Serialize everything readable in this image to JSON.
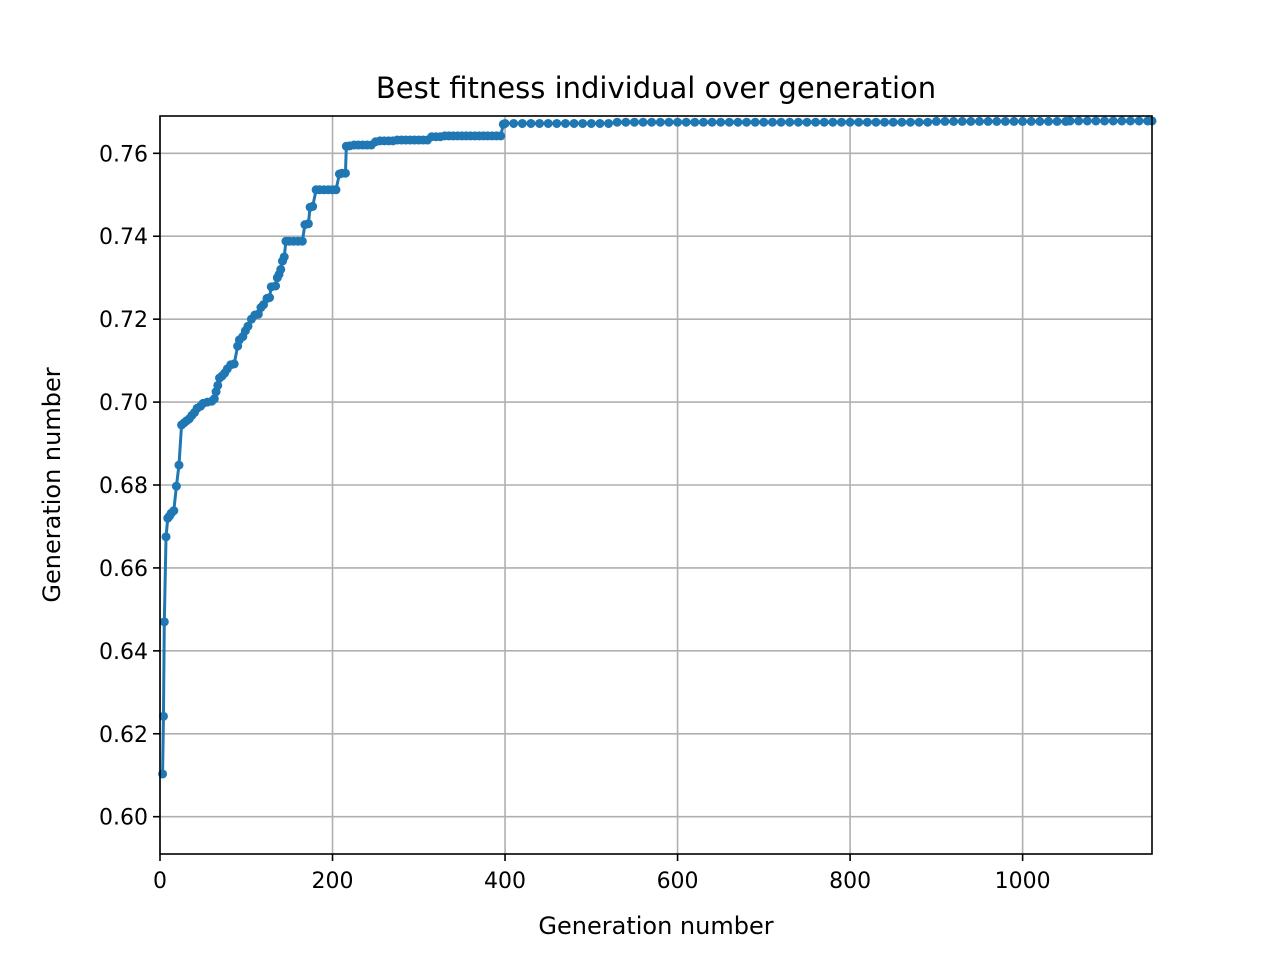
{
  "chart_data": {
    "type": "line",
    "title": "Best fitness individual over generation",
    "xlabel": "Generation number",
    "ylabel": "Generation number",
    "xlim": [
      0,
      1150
    ],
    "ylim": [
      0.591,
      0.769
    ],
    "xticks": [
      0,
      200,
      400,
      600,
      800,
      1000
    ],
    "yticks": [
      0.6,
      0.62,
      0.64,
      0.66,
      0.68,
      0.7,
      0.72,
      0.74,
      0.76
    ],
    "grid": true,
    "legend": "none",
    "colors": {
      "series": "#1f77b4",
      "grid": "#b0b0b0"
    },
    "series": [
      {
        "marker": "point",
        "points": [
          [
            3,
            0.6103
          ],
          [
            4,
            0.6242
          ],
          [
            5,
            0.647
          ],
          [
            7,
            0.6675
          ],
          [
            9,
            0.672
          ],
          [
            11,
            0.6725
          ],
          [
            13,
            0.6732
          ],
          [
            16,
            0.6738
          ],
          [
            19,
            0.6797
          ],
          [
            22,
            0.6848
          ],
          [
            25,
            0.6945
          ],
          [
            28,
            0.695
          ],
          [
            31,
            0.6955
          ],
          [
            34,
            0.696
          ],
          [
            37,
            0.6968
          ],
          [
            40,
            0.6975
          ],
          [
            43,
            0.6985
          ],
          [
            47,
            0.699
          ],
          [
            50,
            0.6997
          ],
          [
            55,
            0.7
          ],
          [
            60,
            0.7002
          ],
          [
            63,
            0.7008
          ],
          [
            65,
            0.7025
          ],
          [
            67,
            0.704
          ],
          [
            69,
            0.7058
          ],
          [
            72,
            0.7063
          ],
          [
            75,
            0.707
          ],
          [
            78,
            0.708
          ],
          [
            82,
            0.709
          ],
          [
            86,
            0.7092
          ],
          [
            90,
            0.7135
          ],
          [
            92,
            0.715
          ],
          [
            96,
            0.7158
          ],
          [
            99,
            0.7172
          ],
          [
            102,
            0.7183
          ],
          [
            106,
            0.72
          ],
          [
            110,
            0.721
          ],
          [
            114,
            0.7212
          ],
          [
            117,
            0.7228
          ],
          [
            120,
            0.7235
          ],
          [
            124,
            0.725
          ],
          [
            127,
            0.7252
          ],
          [
            129,
            0.7278
          ],
          [
            134,
            0.728
          ],
          [
            136,
            0.73
          ],
          [
            138,
            0.7308
          ],
          [
            140,
            0.732
          ],
          [
            142,
            0.734
          ],
          [
            144,
            0.735
          ],
          [
            146,
            0.7388
          ],
          [
            150,
            0.7388
          ],
          [
            155,
            0.7388
          ],
          [
            160,
            0.7388
          ],
          [
            165,
            0.7388
          ],
          [
            168,
            0.7428
          ],
          [
            172,
            0.743
          ],
          [
            174,
            0.747
          ],
          [
            177,
            0.7472
          ],
          [
            181,
            0.7512
          ],
          [
            185,
            0.7512
          ],
          [
            190,
            0.7512
          ],
          [
            195,
            0.7512
          ],
          [
            200,
            0.7512
          ],
          [
            204,
            0.7512
          ],
          [
            208,
            0.755
          ],
          [
            211,
            0.7552
          ],
          [
            215,
            0.7552
          ],
          [
            216,
            0.7617
          ],
          [
            220,
            0.7618
          ],
          [
            225,
            0.762
          ],
          [
            230,
            0.762
          ],
          [
            235,
            0.762
          ],
          [
            240,
            0.762
          ],
          [
            245,
            0.762
          ],
          [
            250,
            0.7628
          ],
          [
            255,
            0.763
          ],
          [
            260,
            0.763
          ],
          [
            265,
            0.763
          ],
          [
            270,
            0.763
          ],
          [
            275,
            0.7632
          ],
          [
            280,
            0.7632
          ],
          [
            285,
            0.7632
          ],
          [
            290,
            0.7632
          ],
          [
            295,
            0.7632
          ],
          [
            300,
            0.7632
          ],
          [
            305,
            0.7632
          ],
          [
            310,
            0.7632
          ],
          [
            315,
            0.764
          ],
          [
            320,
            0.764
          ],
          [
            325,
            0.764
          ],
          [
            330,
            0.7642
          ],
          [
            335,
            0.7642
          ],
          [
            340,
            0.7642
          ],
          [
            345,
            0.7642
          ],
          [
            350,
            0.7642
          ],
          [
            355,
            0.7642
          ],
          [
            360,
            0.7642
          ],
          [
            365,
            0.7642
          ],
          [
            370,
            0.7642
          ],
          [
            375,
            0.7642
          ],
          [
            380,
            0.7642
          ],
          [
            385,
            0.7642
          ],
          [
            390,
            0.7642
          ],
          [
            395,
            0.7642
          ],
          [
            398,
            0.767
          ],
          [
            400,
            0.7672
          ],
          [
            410,
            0.7672
          ],
          [
            420,
            0.7672
          ],
          [
            430,
            0.7672
          ],
          [
            440,
            0.7672
          ],
          [
            450,
            0.7672
          ],
          [
            460,
            0.7672
          ],
          [
            470,
            0.7672
          ],
          [
            480,
            0.7672
          ],
          [
            490,
            0.7672
          ],
          [
            500,
            0.7672
          ],
          [
            510,
            0.7672
          ],
          [
            520,
            0.7672
          ],
          [
            530,
            0.7675
          ],
          [
            540,
            0.7675
          ],
          [
            550,
            0.7675
          ],
          [
            560,
            0.7675
          ],
          [
            570,
            0.7675
          ],
          [
            580,
            0.7675
          ],
          [
            590,
            0.7675
          ],
          [
            600,
            0.7675
          ],
          [
            610,
            0.7675
          ],
          [
            620,
            0.7675
          ],
          [
            630,
            0.7675
          ],
          [
            640,
            0.7675
          ],
          [
            650,
            0.7675
          ],
          [
            660,
            0.7675
          ],
          [
            670,
            0.7675
          ],
          [
            680,
            0.7675
          ],
          [
            690,
            0.7675
          ],
          [
            700,
            0.7675
          ],
          [
            710,
            0.7675
          ],
          [
            720,
            0.7675
          ],
          [
            730,
            0.7675
          ],
          [
            740,
            0.7675
          ],
          [
            750,
            0.7675
          ],
          [
            760,
            0.7675
          ],
          [
            770,
            0.7675
          ],
          [
            780,
            0.7675
          ],
          [
            790,
            0.7675
          ],
          [
            800,
            0.7675
          ],
          [
            810,
            0.7675
          ],
          [
            820,
            0.7675
          ],
          [
            830,
            0.7675
          ],
          [
            840,
            0.7675
          ],
          [
            850,
            0.7675
          ],
          [
            860,
            0.7675
          ],
          [
            870,
            0.7675
          ],
          [
            880,
            0.7675
          ],
          [
            890,
            0.7675
          ],
          [
            900,
            0.7677
          ],
          [
            910,
            0.7677
          ],
          [
            920,
            0.7677
          ],
          [
            930,
            0.7677
          ],
          [
            940,
            0.7677
          ],
          [
            950,
            0.7677
          ],
          [
            960,
            0.7677
          ],
          [
            970,
            0.7677
          ],
          [
            980,
            0.7677
          ],
          [
            990,
            0.7677
          ],
          [
            1000,
            0.7677
          ],
          [
            1010,
            0.7677
          ],
          [
            1020,
            0.7677
          ],
          [
            1030,
            0.7677
          ],
          [
            1040,
            0.7677
          ],
          [
            1050,
            0.7677
          ],
          [
            1055,
            0.7678
          ],
          [
            1065,
            0.7678
          ],
          [
            1075,
            0.7678
          ],
          [
            1085,
            0.7678
          ],
          [
            1095,
            0.7678
          ],
          [
            1105,
            0.7678
          ],
          [
            1115,
            0.7678
          ],
          [
            1125,
            0.7678
          ],
          [
            1135,
            0.7678
          ],
          [
            1145,
            0.7678
          ],
          [
            1150,
            0.7678
          ]
        ]
      }
    ]
  }
}
